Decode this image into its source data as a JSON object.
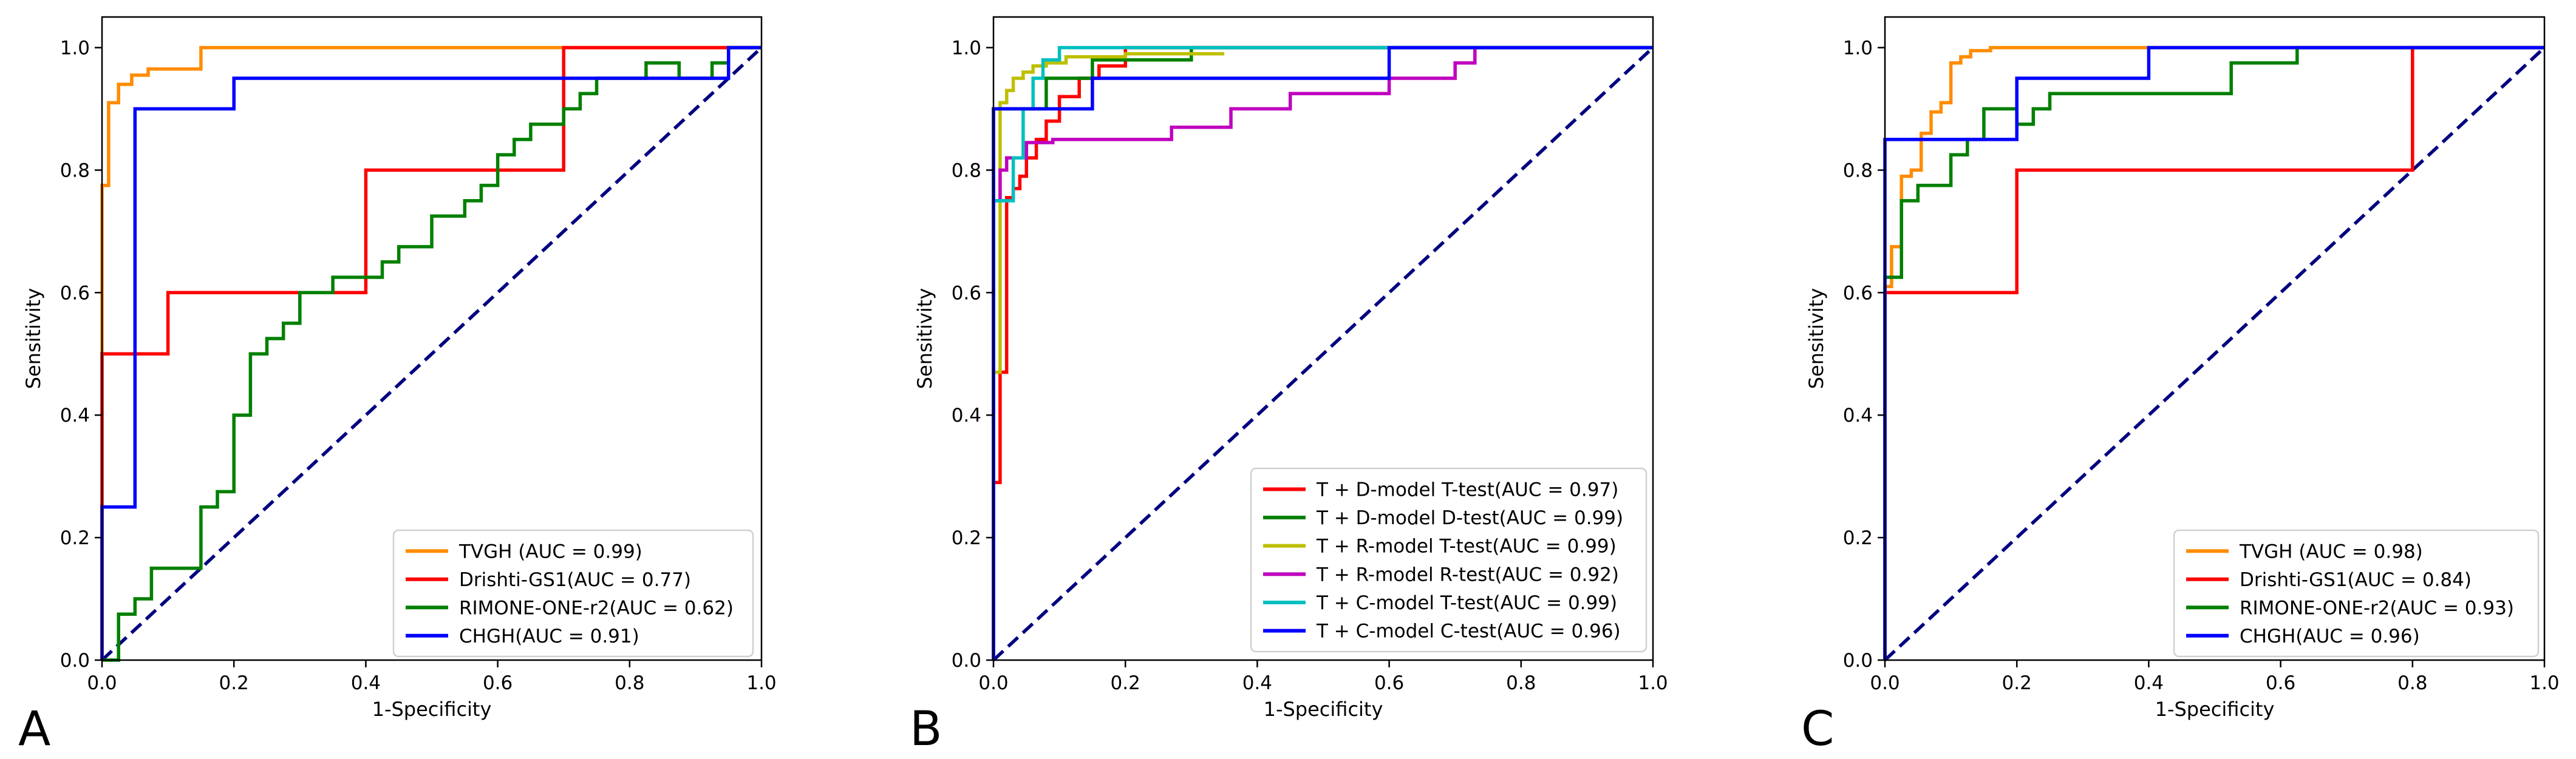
{
  "chart_data": [
    {
      "type": "line",
      "panel_letter": "A",
      "xlabel": "1-Specificity",
      "ylabel": "Sensitivity",
      "xlim": [
        0,
        1
      ],
      "ylim": [
        0,
        1.05
      ],
      "xticks": [
        "0.0",
        "0.2",
        "0.4",
        "0.6",
        "0.8",
        "1.0"
      ],
      "yticks": [
        "0.0",
        "0.2",
        "0.4",
        "0.6",
        "0.8",
        "1.0"
      ],
      "grid": false,
      "legend_position": "lower-right",
      "diagonal": {
        "color": "#000080",
        "style": "dashed"
      },
      "series": [
        {
          "name": "TVGH (AUC = 0.99)",
          "color": "#ff8c00",
          "x": [
            0,
            0,
            0.01,
            0.01,
            0.025,
            0.025,
            0.045,
            0.045,
            0.07,
            0.07,
            0.15,
            0.15,
            1.0
          ],
          "y": [
            0,
            0.775,
            0.775,
            0.91,
            0.91,
            0.94,
            0.94,
            0.955,
            0.955,
            0.965,
            0.965,
            1.0,
            1.0
          ]
        },
        {
          "name": "Drishti-GS1(AUC = 0.77)",
          "color": "#ff0000",
          "x": [
            0,
            0,
            0.1,
            0.1,
            0.4,
            0.4,
            0.7,
            0.7,
            1.0
          ],
          "y": [
            0,
            0.5,
            0.5,
            0.6,
            0.6,
            0.8,
            0.8,
            1.0,
            1.0
          ]
        },
        {
          "name": "RIMONE-ONE-r2(AUC = 0.62)",
          "color": "#008000",
          "x": [
            0,
            0.025,
            0.025,
            0.05,
            0.05,
            0.075,
            0.075,
            0.15,
            0.15,
            0.175,
            0.175,
            0.2,
            0.2,
            0.225,
            0.225,
            0.25,
            0.25,
            0.275,
            0.275,
            0.3,
            0.3,
            0.35,
            0.35,
            0.425,
            0.425,
            0.45,
            0.45,
            0.5,
            0.5,
            0.55,
            0.55,
            0.575,
            0.575,
            0.6,
            0.6,
            0.625,
            0.625,
            0.65,
            0.65,
            0.7,
            0.7,
            0.725,
            0.725,
            0.75,
            0.75,
            0.825,
            0.825,
            0.875,
            0.875,
            0.925,
            0.925,
            0.95,
            0.95,
            1.0
          ],
          "y": [
            0,
            0,
            0.075,
            0.075,
            0.1,
            0.1,
            0.15,
            0.15,
            0.25,
            0.25,
            0.275,
            0.275,
            0.4,
            0.4,
            0.5,
            0.5,
            0.525,
            0.525,
            0.55,
            0.55,
            0.6,
            0.6,
            0.625,
            0.625,
            0.65,
            0.65,
            0.675,
            0.675,
            0.725,
            0.725,
            0.75,
            0.75,
            0.775,
            0.775,
            0.825,
            0.825,
            0.85,
            0.85,
            0.875,
            0.875,
            0.9,
            0.9,
            0.925,
            0.925,
            0.95,
            0.95,
            0.975,
            0.975,
            0.95,
            0.95,
            0.975,
            0.975,
            1.0,
            1.0
          ]
        },
        {
          "name": "CHGH(AUC = 0.91)",
          "color": "#0000ff",
          "x": [
            0,
            0,
            0.05,
            0.05,
            0.2,
            0.2,
            0.95,
            0.95,
            1.0
          ],
          "y": [
            0,
            0.25,
            0.25,
            0.9,
            0.9,
            0.95,
            0.95,
            1.0,
            1.0
          ]
        }
      ]
    },
    {
      "type": "line",
      "panel_letter": "B",
      "xlabel": "1-Specificity",
      "ylabel": "Sensitivity",
      "xlim": [
        0,
        1
      ],
      "ylim": [
        0,
        1.05
      ],
      "xticks": [
        "0.0",
        "0.2",
        "0.4",
        "0.6",
        "0.8",
        "1.0"
      ],
      "yticks": [
        "0.0",
        "0.2",
        "0.4",
        "0.6",
        "0.8",
        "1.0"
      ],
      "grid": false,
      "legend_position": "lower-right",
      "diagonal": {
        "color": "#000080",
        "style": "dashed"
      },
      "series": [
        {
          "name": "T + D-model T-test(AUC = 0.97)",
          "color": "#ff0000",
          "x": [
            0,
            0,
            0.01,
            0.01,
            0.02,
            0.02,
            0.03,
            0.03,
            0.04,
            0.04,
            0.05,
            0.05,
            0.065,
            0.065,
            0.08,
            0.08,
            0.1,
            0.1,
            0.13,
            0.13,
            0.16,
            0.16,
            0.2,
            0.2,
            1.0
          ],
          "y": [
            0,
            0.29,
            0.29,
            0.47,
            0.47,
            0.755,
            0.755,
            0.77,
            0.77,
            0.79,
            0.79,
            0.82,
            0.82,
            0.85,
            0.85,
            0.88,
            0.88,
            0.92,
            0.92,
            0.95,
            0.95,
            0.97,
            0.97,
            1.0,
            1.0
          ]
        },
        {
          "name": "T + D-model D-test(AUC = 0.99)",
          "color": "#008000",
          "x": [
            0,
            0,
            0.08,
            0.08,
            0.15,
            0.15,
            0.3,
            0.3,
            1.0
          ],
          "y": [
            0,
            0.9,
            0.9,
            0.95,
            0.95,
            0.98,
            0.98,
            1.0,
            1.0
          ]
        },
        {
          "name": "T + R-model T-test(AUC = 0.99)",
          "color": "#bfbf00",
          "x": [
            0,
            0,
            0.01,
            0.01,
            0.02,
            0.02,
            0.03,
            0.03,
            0.045,
            0.045,
            0.06,
            0.06,
            0.08,
            0.08,
            0.11,
            0.11,
            0.2,
            0.2,
            0.35
          ],
          "y": [
            0,
            0.47,
            0.47,
            0.91,
            0.91,
            0.93,
            0.93,
            0.95,
            0.95,
            0.96,
            0.96,
            0.97,
            0.97,
            0.975,
            0.975,
            0.985,
            0.985,
            0.99,
            0.99
          ]
        },
        {
          "name": "T + R-model R-test(AUC = 0.92)",
          "color": "#bf00bf",
          "x": [
            0,
            0,
            0.01,
            0.01,
            0.02,
            0.02,
            0.05,
            0.05,
            0.09,
            0.09,
            0.27,
            0.27,
            0.36,
            0.36,
            0.45,
            0.45,
            0.6,
            0.6,
            0.7,
            0.7,
            0.73,
            0.73
          ],
          "y": [
            0,
            0.75,
            0.75,
            0.8,
            0.8,
            0.82,
            0.82,
            0.845,
            0.845,
            0.85,
            0.85,
            0.87,
            0.87,
            0.9,
            0.9,
            0.925,
            0.925,
            0.95,
            0.95,
            0.975,
            0.975,
            1.0
          ]
        },
        {
          "name": "T + C-model T-test(AUC = 0.99)",
          "color": "#00bfbf",
          "x": [
            0,
            0,
            0.03,
            0.03,
            0.045,
            0.045,
            0.06,
            0.06,
            0.075,
            0.075,
            0.1,
            0.1,
            1.0
          ],
          "y": [
            0,
            0.75,
            0.75,
            0.82,
            0.82,
            0.9,
            0.9,
            0.95,
            0.95,
            0.98,
            0.98,
            1.0,
            1.0
          ]
        },
        {
          "name": "T + C-model C-test(AUC = 0.96)",
          "color": "#0000ff",
          "x": [
            0,
            0,
            0.15,
            0.15,
            0.6,
            0.6,
            1.0
          ],
          "y": [
            0,
            0.9,
            0.9,
            0.95,
            0.95,
            1.0,
            1.0
          ]
        }
      ]
    },
    {
      "type": "line",
      "panel_letter": "C",
      "xlabel": "1-Specificity",
      "ylabel": "Sensitivity",
      "xlim": [
        0,
        1
      ],
      "ylim": [
        0,
        1.05
      ],
      "xticks": [
        "0.0",
        "0.2",
        "0.4",
        "0.6",
        "0.8",
        "1.0"
      ],
      "yticks": [
        "0.0",
        "0.2",
        "0.4",
        "0.6",
        "0.8",
        "1.0"
      ],
      "grid": false,
      "legend_position": "lower-right",
      "diagonal": {
        "color": "#000080",
        "style": "dashed"
      },
      "series": [
        {
          "name": "TVGH (AUC = 0.98)",
          "color": "#ff8c00",
          "x": [
            0,
            0,
            0.01,
            0.01,
            0.025,
            0.025,
            0.04,
            0.04,
            0.055,
            0.055,
            0.07,
            0.07,
            0.085,
            0.085,
            0.1,
            0.1,
            0.115,
            0.115,
            0.13,
            0.13,
            0.16,
            0.16,
            1.0
          ],
          "y": [
            0,
            0.61,
            0.61,
            0.675,
            0.675,
            0.79,
            0.79,
            0.8,
            0.8,
            0.86,
            0.86,
            0.895,
            0.895,
            0.91,
            0.91,
            0.975,
            0.975,
            0.985,
            0.985,
            0.995,
            0.995,
            1.0,
            1.0
          ]
        },
        {
          "name": "Drishti-GS1(AUC = 0.84)",
          "color": "#ff0000",
          "x": [
            0,
            0,
            0.2,
            0.2,
            0.8,
            0.8,
            1.0
          ],
          "y": [
            0,
            0.6,
            0.6,
            0.8,
            0.8,
            1.0,
            1.0
          ]
        },
        {
          "name": "RIMONE-ONE-r2(AUC = 0.93)",
          "color": "#008000",
          "x": [
            0,
            0,
            0.025,
            0.025,
            0.05,
            0.05,
            0.1,
            0.1,
            0.125,
            0.125,
            0.15,
            0.15,
            0.2,
            0.2,
            0.225,
            0.225,
            0.25,
            0.25,
            0.525,
            0.525,
            0.625,
            0.625,
            1.0
          ],
          "y": [
            0,
            0.625,
            0.625,
            0.75,
            0.75,
            0.775,
            0.775,
            0.825,
            0.825,
            0.85,
            0.85,
            0.9,
            0.9,
            0.875,
            0.875,
            0.9,
            0.9,
            0.925,
            0.925,
            0.975,
            0.975,
            1.0,
            1.0
          ]
        },
        {
          "name": "CHGH(AUC = 0.96)",
          "color": "#0000ff",
          "x": [
            0,
            0,
            0.2,
            0.2,
            0.4,
            0.4,
            1.0
          ],
          "y": [
            0,
            0.85,
            0.85,
            0.95,
            0.95,
            1.0,
            1.0
          ]
        }
      ]
    }
  ]
}
